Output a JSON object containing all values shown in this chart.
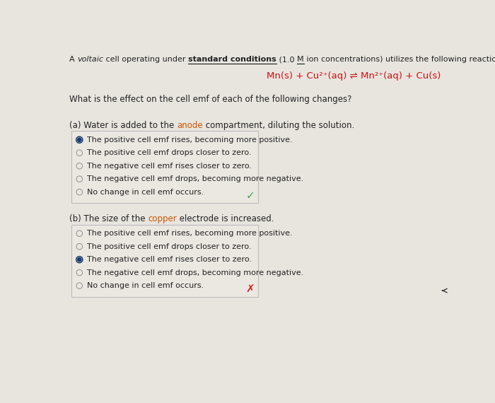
{
  "bg_color": "#e8e5df",
  "title_parts": [
    {
      "text": "A ",
      "weight": "normal",
      "style": "normal",
      "underline": false,
      "color": "#222222"
    },
    {
      "text": "voltaic",
      "weight": "normal",
      "style": "italic",
      "underline": false,
      "color": "#222222"
    },
    {
      "text": " cell operating under ",
      "weight": "normal",
      "style": "normal",
      "underline": false,
      "color": "#222222"
    },
    {
      "text": "standard conditions",
      "weight": "bold",
      "style": "normal",
      "underline": true,
      "color": "#222222"
    },
    {
      "text": " (1.0 ",
      "weight": "normal",
      "style": "normal",
      "underline": false,
      "color": "#222222"
    },
    {
      "text": "M",
      "weight": "normal",
      "style": "normal",
      "underline": true,
      "color": "#222222"
    },
    {
      "text": " ion concentrations) utilizes the following reaction:",
      "weight": "normal",
      "style": "normal",
      "underline": false,
      "color": "#222222"
    }
  ],
  "reaction_text": "Mn(s) + Cu²⁺(aq) ⇌ Mn²⁺(aq) + Cu(s)",
  "reaction_color": "#cc1111",
  "question_text": "What is the effect on the cell emf of each of the following changes?",
  "part_a_prefix": "(a) Water is added to the ",
  "part_a_highlight": "anode",
  "part_a_highlight_color": "#cc5500",
  "part_a_suffix": " compartment, diluting the solution.",
  "part_a_options": [
    "The positive cell emf rises, becoming more positive.",
    "The positive cell emf drops closer to zero.",
    "The negative cell emf rises closer to zero.",
    "The negative cell emf drops, becoming more negative.",
    "No change in cell emf occurs."
  ],
  "part_a_selected": 0,
  "part_a_correct": true,
  "part_b_prefix": "(b) The size of the ",
  "part_b_highlight": "copper",
  "part_b_highlight_color": "#cc5500",
  "part_b_suffix": " electrode is increased.",
  "part_b_options": [
    "The positive cell emf rises, becoming more positive.",
    "The positive cell emf drops closer to zero.",
    "The negative cell emf rises closer to zero.",
    "The negative cell emf drops, becoming more negative.",
    "No change in cell emf occurs."
  ],
  "part_b_selected": 2,
  "part_b_correct": false,
  "box_facecolor": "#ebe8e2",
  "box_edgecolor": "#bbbbbb",
  "radio_selected_outer": "#1a3a6b",
  "radio_selected_inner": "#1a3a6b",
  "radio_empty_edge": "#999999",
  "text_color": "#222222",
  "check_color": "#3aaa55",
  "cross_color": "#cc2222",
  "fs_title": 8.0,
  "fs_reaction": 9.5,
  "fs_question": 8.5,
  "fs_part": 8.5,
  "fs_option": 8.0
}
